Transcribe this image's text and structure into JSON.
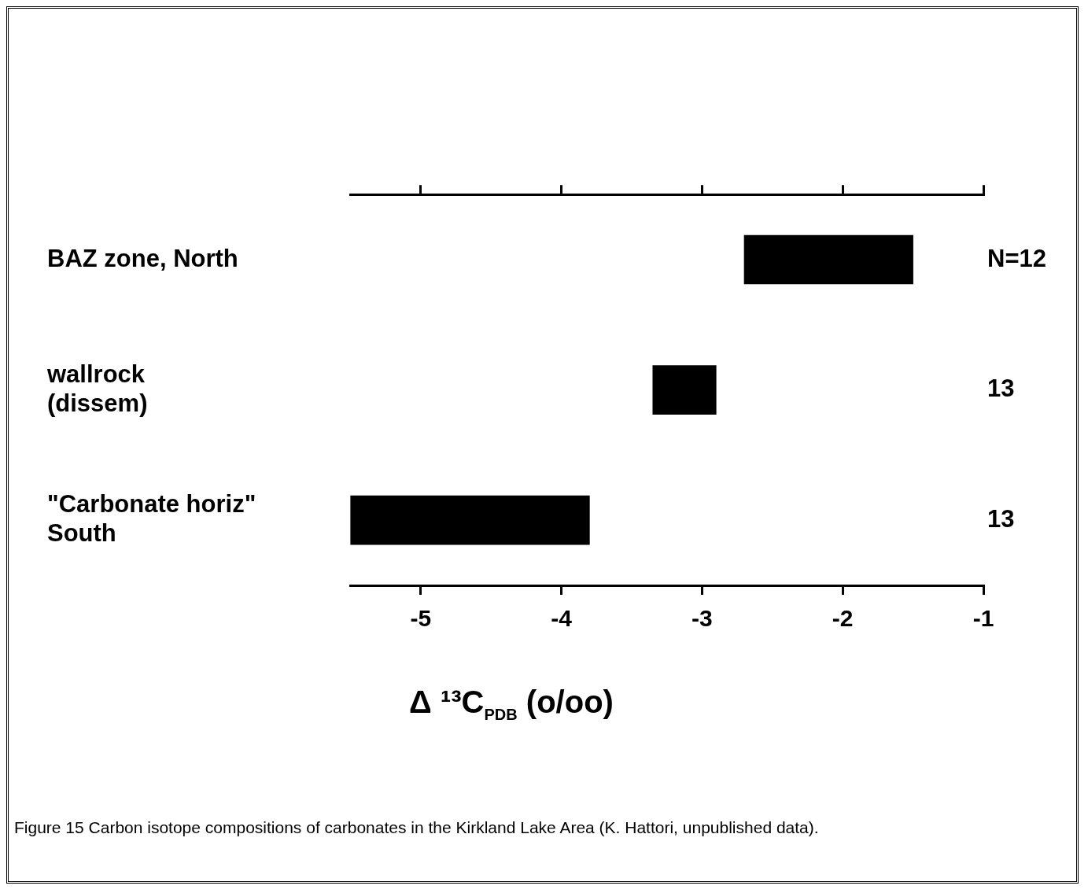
{
  "chart_data": {
    "type": "bar",
    "orientation": "horizontal",
    "categories": [
      "BAZ zone, North",
      "wallrock\n(dissem)",
      "\"Carbonate horiz\"\nSouth"
    ],
    "base": [
      -2.7,
      -3.35,
      -5.5
    ],
    "values": [
      1.2,
      0.45,
      1.7
    ],
    "color": "#000000",
    "xlim": [
      -5.5,
      -1
    ],
    "xticks": [
      -5,
      -4,
      -3,
      -2,
      -1
    ],
    "xlabel": "Δ ¹³C$_{PDB}$ (o/oo)",
    "grid": false,
    "legend": false,
    "annotations": [
      "N=12",
      "13",
      "13",
      "Figure 15 Carbon isotope compositions of carbonates in the Kirkland Lake Area (K. Hattori, unpublished data)."
    ]
  }
}
